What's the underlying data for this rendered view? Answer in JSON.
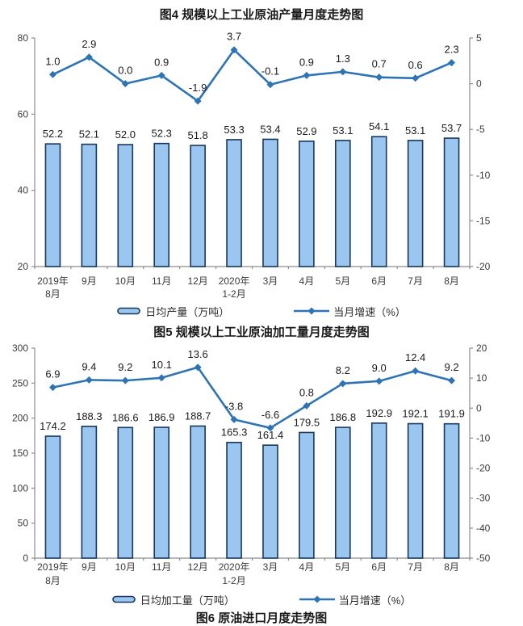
{
  "page": {
    "figure6_caption": "图6 原油进口月度走势图"
  },
  "colors": {
    "bar_fill": "#9BC6EF",
    "bar_border": "#17375E",
    "line": "#2E74B5",
    "axis": "#8C8C8C"
  },
  "chart_data": [
    {
      "type": "bar+line",
      "title": "图4 规模以上工业原油产量月度走势图",
      "categories": [
        "2019年\n8月",
        "9月",
        "10月",
        "11月",
        "12月",
        "2020年\n1-2月",
        "3月",
        "4月",
        "5月",
        "6月",
        "7月",
        "8月"
      ],
      "series": [
        {
          "name": "日均产量（万吨）",
          "type": "bar",
          "axis": "left",
          "values": [
            52.2,
            52.1,
            52.0,
            52.3,
            51.8,
            53.3,
            53.4,
            52.9,
            53.1,
            54.1,
            53.1,
            53.7
          ]
        },
        {
          "name": "当月增速（%）",
          "type": "line",
          "axis": "right",
          "values": [
            1.0,
            2.9,
            0.0,
            0.9,
            -1.9,
            3.7,
            -0.1,
            0.9,
            1.3,
            0.7,
            0.6,
            2.3
          ]
        }
      ],
      "left_axis": {
        "min": 20,
        "max": 80,
        "ticks": [
          20,
          40,
          60,
          80
        ]
      },
      "right_axis": {
        "min": -20,
        "max": 5,
        "ticks": [
          -20,
          -15,
          -10,
          -5,
          0,
          5
        ]
      },
      "grid": false,
      "legend_position": "bottom"
    },
    {
      "type": "bar+line",
      "title": "图5 规模以上工业原油加工量月度走势图",
      "categories": [
        "2019年\n8月",
        "9月",
        "10月",
        "11月",
        "12月",
        "2020年\n1-2月",
        "3月",
        "4月",
        "5月",
        "6月",
        "7月",
        "8月"
      ],
      "series": [
        {
          "name": "日均加工量（万吨）",
          "type": "bar",
          "axis": "left",
          "values": [
            174.2,
            188.3,
            186.6,
            186.9,
            188.7,
            165.3,
            161.4,
            179.5,
            186.8,
            192.9,
            192.1,
            191.9
          ]
        },
        {
          "name": "当月增速（%）",
          "type": "line",
          "axis": "right",
          "values": [
            6.9,
            9.4,
            9.2,
            10.1,
            13.6,
            -3.8,
            -6.6,
            0.8,
            8.2,
            9.0,
            12.4,
            9.2
          ]
        }
      ],
      "left_axis": {
        "min": 0,
        "max": 300,
        "ticks": [
          0,
          50,
          100,
          150,
          200,
          250,
          300
        ]
      },
      "right_axis": {
        "min": -50,
        "max": 20,
        "ticks": [
          -50,
          -40,
          -30,
          -20,
          -10,
          0,
          10,
          20
        ]
      },
      "grid": false,
      "legend_position": "bottom"
    }
  ]
}
